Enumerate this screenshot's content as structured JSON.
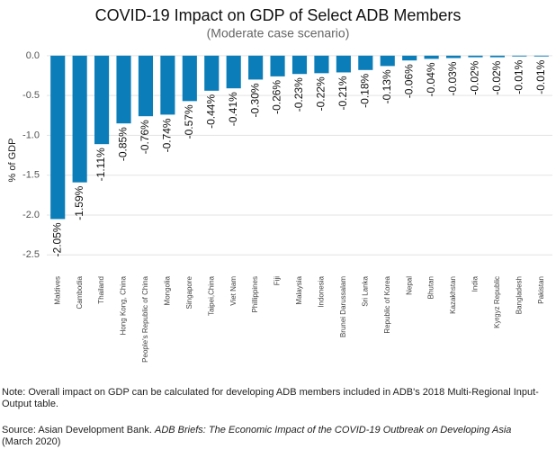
{
  "chart_data": {
    "type": "bar",
    "title": "COVID-19 Impact on GDP of Select ADB Members",
    "subtitle": "(Moderate case scenario)",
    "y_label": "% of GDP",
    "categories": [
      "Maldives",
      "Cambodia",
      "Thailand",
      "Hong Kong, China",
      "People's Republic of China",
      "Mongolia",
      "Singapore",
      "Taipei,China",
      "Viet Nam",
      "Phillippines",
      "Fiji",
      "Malaysia",
      "Indonesia",
      "Brunei Darussalam",
      "Sri Lanka",
      "Republic of Korea",
      "Nepal",
      "Bhutan",
      "Kazakhstan",
      "India",
      "Kyrgyz Republic",
      "Bangladesh",
      "Pakistan"
    ],
    "values": [
      -2.05,
      -1.59,
      -1.11,
      -0.85,
      -0.76,
      -0.74,
      -0.57,
      -0.44,
      -0.41,
      -0.3,
      -0.26,
      -0.23,
      -0.22,
      -0.21,
      -0.18,
      -0.13,
      -0.06,
      -0.04,
      -0.03,
      -0.02,
      -0.02,
      -0.01,
      -0.01
    ],
    "value_labels": [
      "-2.05%",
      "-1.59%",
      "-1.11%",
      "-0.85%",
      "-0.76%",
      "-0.74%",
      "-0.57%",
      "-0.44%",
      "-0.41%",
      "-0.30%",
      "-0.26%",
      "-0.23%",
      "-0.22%",
      "-0.21%",
      "-0.18%",
      "-0.13%",
      "-0.06%",
      "-0.04%",
      "-0.03%",
      "-0.02%",
      "-0.02%",
      "-0.01%",
      "-0.01%"
    ],
    "color": "#0b7db8",
    "ylim": [
      -2.7,
      0.1
    ],
    "yticks": [
      {
        "value": 0,
        "label": "0.0"
      },
      -0.5,
      {
        "value": -1,
        "label": "-1.0"
      },
      -1.5,
      {
        "value": -2,
        "label": "-2.0"
      },
      -2.5
    ],
    "grid": true,
    "note": "Note: Overall impact on GDP can be calculated for developing ADB members included in ADB's 2018 Multi-Regional Input-Output table.",
    "source_prefix": "Source: Asian Development Bank.",
    "source_title": "ADB Briefs: The Economic Impact of the COVID-19 Outbreak on Developing Asia",
    "source_suffix": "(March 2020)"
  }
}
